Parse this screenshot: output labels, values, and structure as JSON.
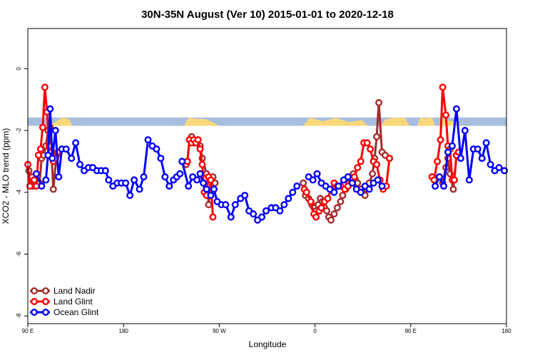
{
  "chart_data": {
    "type": "line",
    "title": "30N-35N August (Ver 10)   2015-01-01 to 2020-12-18",
    "xlabel": "Longitude",
    "ylabel": "XCO2 - MLO trend (ppm)",
    "xlim": [
      90,
      540
    ],
    "ylim": [
      -8.25,
      1.3
    ],
    "x_ticks": [
      {
        "value": 90,
        "label": "90 E"
      },
      {
        "value": 180,
        "label": "180"
      },
      {
        "value": 270,
        "label": "90 W"
      },
      {
        "value": 360,
        "label": "0"
      },
      {
        "value": 450,
        "label": "90 E"
      },
      {
        "value": 540,
        "label": "180"
      }
    ],
    "y_ticks": [
      {
        "value": 0,
        "label": "0"
      },
      {
        "value": -2,
        "label": "-2"
      },
      {
        "value": -4,
        "label": "-4"
      },
      {
        "value": -6,
        "label": "-6"
      },
      {
        "value": -8,
        "label": "-8"
      }
    ],
    "grid": false,
    "legend_position": "bottom-left",
    "land_ocean_band": {
      "y_top": -1.58,
      "y_bottom": -1.85,
      "ocean_color": "#a7bedf",
      "land_color": "#fad87a",
      "land_segments": [
        [
          111,
          132,
          [
            0.35,
            0.95,
            0.85
          ]
        ],
        [
          237,
          270,
          [
            1.0,
            0.85,
            0.8,
            0.3
          ]
        ],
        [
          349,
          410,
          [
            1.0,
            0.55,
            0.95,
            0.45,
            0.7
          ]
        ],
        [
          422,
          449,
          [
            0.8,
            1.0,
            0.95
          ]
        ],
        [
          456,
          473,
          [
            1.0,
            0.9,
            1.0
          ]
        ],
        [
          477,
          497,
          [
            0.9,
            0.6,
            0.4
          ]
        ]
      ]
    },
    "series": [
      {
        "name": "Land Nadir",
        "color": "#a52a2a",
        "x": [
          [
            91,
            93,
            95,
            97,
            99,
            101,
            103,
            105,
            107,
            109,
            111,
            114,
            117
          ],
          [
            239,
            240,
            242,
            244,
            246,
            250,
            252,
            254,
            258,
            260,
            262,
            264,
            266
          ],
          [
            349,
            351,
            354,
            357,
            359,
            361,
            363,
            365,
            367,
            369,
            371,
            373,
            375,
            378,
            381,
            384,
            386,
            389,
            392,
            394,
            396,
            398,
            400,
            403,
            405,
            407,
            409,
            411,
            414,
            416,
            418,
            420,
            423,
            426,
            430
          ],
          [
            480,
            483,
            485,
            487,
            490,
            493
          ]
        ],
        "y": [
          [
            -3.3,
            -3.5,
            -3.8,
            -3.6,
            -3.5,
            -3.7,
            -2.9,
            -2.8,
            -2.5,
            -2.0,
            -1.9,
            -3.9,
            -2.8
          ],
          [
            -3.1,
            -3.0,
            -2.3,
            -2.2,
            -2.4,
            -2.3,
            -2.5,
            -2.9,
            -3.4,
            -4.4,
            -3.6,
            -3.5,
            -3.7
          ],
          [
            -3.7,
            -4.1,
            -4.2,
            -4.4,
            -4.5,
            -4.6,
            -4.4,
            -4.2,
            -4.3,
            -4.5,
            -4.6,
            -4.8,
            -4.9,
            -4.7,
            -4.5,
            -4.3,
            -4.1,
            -3.9,
            -3.7,
            -3.5,
            -3.4,
            -3.6,
            -3.7,
            -3.9,
            -4.0,
            -4.1,
            -3.9,
            -3.7,
            -3.4,
            -2.9,
            -2.2,
            -1.1,
            -2.7,
            -2.8,
            -2.9
          ],
          [
            -3.7,
            -3.2,
            -2.9,
            -3.4,
            -3.9,
            -2.8
          ]
        ]
      },
      {
        "name": "Land Glint",
        "color": "#ff0000",
        "x": [
          [
            90,
            92,
            94,
            96,
            98,
            100,
            102,
            104,
            106,
            108,
            110,
            112,
            114,
            116,
            118
          ],
          [
            240,
            242,
            244,
            246,
            248,
            250,
            252,
            254,
            256,
            258,
            260,
            262,
            264
          ],
          [
            350,
            352,
            356,
            359,
            361,
            364,
            366,
            369,
            372,
            375,
            378,
            381,
            384,
            388,
            391,
            394,
            397,
            400,
            403,
            406,
            409,
            412,
            415,
            418,
            421,
            424,
            427,
            430
          ],
          [
            470,
            472,
            475,
            478,
            480,
            483,
            485,
            487,
            489,
            491,
            493,
            495
          ]
        ],
        "y": [
          [
            -3.1,
            -3.8,
            -3.5,
            -3.6,
            -3.8,
            -2.8,
            -2.6,
            -1.9,
            -0.6,
            -1.4,
            -2.5,
            -2.7,
            -3.0,
            -2.9,
            -2.7
          ],
          [
            -3.0,
            -2.3,
            -2.4,
            -2.3,
            -2.4,
            -2.3,
            -2.6,
            -3.1,
            -4.0,
            -4.1,
            -3.5,
            -3.6,
            -4.8
          ],
          [
            -3.9,
            -4.0,
            -4.3,
            -4.7,
            -4.8,
            -4.6,
            -4.5,
            -4.3,
            -4.2,
            -3.9,
            -3.7,
            -3.8,
            -3.8,
            -3.9,
            -3.8,
            -3.6,
            -3.5,
            -3.2,
            -3.0,
            -2.4,
            -2.4,
            -2.6,
            -3.0,
            -3.1,
            -3.6,
            -3.9,
            -3.8,
            -2.9
          ],
          [
            -3.5,
            -3.6,
            -3.0,
            -2.3,
            -0.6,
            -1.5,
            -2.5,
            -2.6,
            -3.6,
            -3.6,
            -2.8,
            -2.7
          ]
        ]
      },
      {
        "name": "Ocean Glint",
        "color": "#0000ff",
        "x": [
          [
            98,
            103,
            107,
            109,
            111,
            113,
            116,
            119,
            122,
            126,
            131,
            135,
            139,
            143,
            147,
            151,
            155,
            159,
            163,
            166,
            170,
            174,
            178,
            182,
            186,
            190,
            195,
            199,
            203,
            207,
            211,
            215,
            219,
            223,
            227,
            230,
            233
          ],
          [
            235,
            241,
            245,
            249,
            252,
            255,
            258,
            262,
            265,
            268,
            272,
            276,
            281,
            285,
            290,
            294,
            298,
            302,
            306,
            310,
            314,
            319,
            323,
            327,
            331,
            335,
            339,
            343
          ],
          [
            354,
            358,
            362,
            366,
            370,
            374,
            378,
            382,
            387,
            391,
            395,
            399,
            403,
            407,
            411,
            415,
            419,
            423
          ],
          [
            473,
            477,
            481,
            485,
            489,
            493,
            497,
            501,
            505,
            509,
            513,
            517,
            521,
            525,
            529,
            533,
            538
          ]
        ],
        "y": [
          [
            -3.4,
            -3.8,
            -3.6,
            -2.8,
            -1.3,
            -2.9,
            -2.0,
            -3.5,
            -2.6,
            -2.6,
            -2.9,
            -2.4,
            -3.1,
            -3.3,
            -3.2,
            -3.2,
            -3.3,
            -3.3,
            -3.3,
            -3.6,
            -3.8,
            -3.7,
            -3.7,
            -3.7,
            -4.1,
            -3.6,
            -3.9,
            -3.5,
            -2.3,
            -2.5,
            -2.6,
            -2.9,
            -3.5,
            -3.8,
            -3.6,
            -3.5,
            -3.4
          ],
          [
            -3.0,
            -3.8,
            -3.5,
            -3.6,
            -3.4,
            -3.7,
            -3.9,
            -4.1,
            -3.9,
            -4.3,
            -4.4,
            -4.4,
            -4.8,
            -4.4,
            -4.2,
            -4.1,
            -4.6,
            -4.7,
            -4.9,
            -4.8,
            -4.6,
            -4.5,
            -4.5,
            -4.6,
            -4.4,
            -4.2,
            -4.0,
            -3.8
          ],
          [
            -3.5,
            -3.6,
            -3.4,
            -3.7,
            -3.8,
            -3.9,
            -4.0,
            -3.8,
            -3.6,
            -3.5,
            -3.7,
            -3.9,
            -4.0,
            -3.8,
            -3.9,
            -3.7,
            -3.6,
            -3.8
          ],
          [
            -3.8,
            -3.5,
            -3.8,
            -2.7,
            -2.5,
            -1.3,
            -2.9,
            -2.0,
            -3.6,
            -2.6,
            -2.6,
            -2.9,
            -2.4,
            -3.1,
            -3.3,
            -3.2,
            -3.3
          ]
        ]
      }
    ]
  }
}
